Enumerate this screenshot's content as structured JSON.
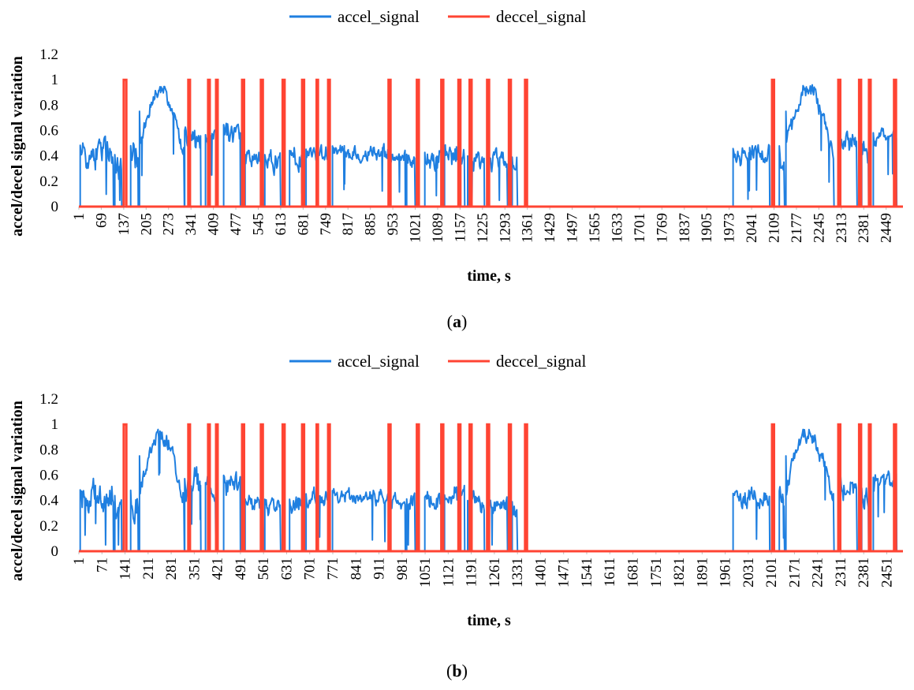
{
  "chart_data": [
    {
      "type": "line",
      "panel_label": "a",
      "xlabel": "time, s",
      "ylabel": "accel/decel signal variation",
      "ylim": [
        0,
        1.2
      ],
      "yticks": [
        0,
        0.2,
        0.4,
        0.6,
        0.8,
        1,
        1.2
      ],
      "ytick_labels": [
        "0",
        "0.2",
        "0.4",
        "0.6",
        "0.8",
        "1",
        "1.2"
      ],
      "xlim": [
        1,
        2500
      ],
      "xticks": [
        1,
        69,
        137,
        205,
        273,
        341,
        409,
        477,
        545,
        613,
        681,
        749,
        817,
        885,
        953,
        1021,
        1089,
        1157,
        1225,
        1293,
        1361,
        1429,
        1497,
        1565,
        1633,
        1701,
        1769,
        1837,
        1905,
        1973,
        2041,
        2109,
        2177,
        2245,
        2313,
        2381,
        2449
      ],
      "grid": false,
      "legend": "top-center",
      "series": [
        {
          "name": "accel_signal",
          "color": "#1f7fe0",
          "segments": [
            {
              "start": 5,
              "end": 105,
              "level": 0.42,
              "amp": 0.16,
              "trend": 0.0
            },
            {
              "start": 110,
              "end": 130,
              "level": 0.35,
              "amp": 0.15,
              "trend": 0.0
            },
            {
              "start": 158,
              "end": 180,
              "level": 0.4,
              "amp": 0.2,
              "trend": 0.0
            },
            {
              "start": 185,
              "end": 320,
              "level": 0.72,
              "amp": 0.08,
              "trend": 0.0
            },
            {
              "start": 322,
              "end": 370,
              "level": 0.52,
              "amp": 0.13,
              "trend": 0.0
            },
            {
              "start": 385,
              "end": 420,
              "level": 0.5,
              "amp": 0.1,
              "trend": 0.0
            },
            {
              "start": 440,
              "end": 490,
              "level": 0.55,
              "amp": 0.12,
              "trend": 0.0
            },
            {
              "start": 505,
              "end": 560,
              "level": 0.38,
              "amp": 0.08,
              "trend": 0.0
            },
            {
              "start": 565,
              "end": 612,
              "level": 0.37,
              "amp": 0.1,
              "trend": 0.0
            },
            {
              "start": 640,
              "end": 680,
              "level": 0.37,
              "amp": 0.1,
              "trend": 0.0
            },
            {
              "start": 690,
              "end": 760,
              "level": 0.42,
              "amp": 0.08,
              "trend": 0.0
            },
            {
              "start": 770,
              "end": 990,
              "level": 0.45,
              "amp": 0.07,
              "trend": -0.06
            },
            {
              "start": 995,
              "end": 1020,
              "level": 0.38,
              "amp": 0.08,
              "trend": 0.0
            },
            {
              "start": 1050,
              "end": 1100,
              "level": 0.38,
              "amp": 0.12,
              "trend": 0.0
            },
            {
              "start": 1110,
              "end": 1170,
              "level": 0.4,
              "amp": 0.11,
              "trend": 0.0
            },
            {
              "start": 1180,
              "end": 1230,
              "level": 0.36,
              "amp": 0.1,
              "trend": 0.0
            },
            {
              "start": 1245,
              "end": 1300,
              "level": 0.36,
              "amp": 0.1,
              "trend": 0.0
            },
            {
              "start": 1315,
              "end": 1330,
              "level": 0.35,
              "amp": 0.1,
              "trend": 0.0
            },
            {
              "start": 1985,
              "end": 2095,
              "level": 0.42,
              "amp": 0.09,
              "trend": 0.0
            },
            {
              "start": 2125,
              "end": 2140,
              "level": 0.38,
              "amp": 0.15,
              "trend": 0.0
            },
            {
              "start": 2145,
              "end": 2290,
              "level": 0.72,
              "amp": 0.08,
              "trend": 0.0
            },
            {
              "start": 2305,
              "end": 2360,
              "level": 0.52,
              "amp": 0.1,
              "trend": 0.0
            },
            {
              "start": 2375,
              "end": 2395,
              "level": 0.45,
              "amp": 0.12,
              "trend": 0.0
            },
            {
              "start": 2410,
              "end": 2480,
              "level": 0.55,
              "amp": 0.08,
              "trend": 0.0
            }
          ]
        },
        {
          "name": "deccel_signal",
          "color": "#ff4433",
          "pulses": [
            {
              "start": 137,
              "end": 145
            },
            {
              "start": 333,
              "end": 338
            },
            {
              "start": 393,
              "end": 398
            },
            {
              "start": 417,
              "end": 422
            },
            {
              "start": 496,
              "end": 502
            },
            {
              "start": 553,
              "end": 559
            },
            {
              "start": 619,
              "end": 625
            },
            {
              "start": 678,
              "end": 684
            },
            {
              "start": 722,
              "end": 726
            },
            {
              "start": 757,
              "end": 762
            },
            {
              "start": 940,
              "end": 946
            },
            {
              "start": 1026,
              "end": 1032
            },
            {
              "start": 1100,
              "end": 1106
            },
            {
              "start": 1152,
              "end": 1158
            },
            {
              "start": 1186,
              "end": 1192
            },
            {
              "start": 1239,
              "end": 1245
            },
            {
              "start": 1305,
              "end": 1311
            },
            {
              "start": 1354,
              "end": 1360
            },
            {
              "start": 2103,
              "end": 2109
            },
            {
              "start": 2304,
              "end": 2310
            },
            {
              "start": 2367,
              "end": 2373
            },
            {
              "start": 2397,
              "end": 2402
            },
            {
              "start": 2473,
              "end": 2479
            }
          ]
        }
      ]
    },
    {
      "type": "line",
      "panel_label": "b",
      "xlabel": "time, s",
      "ylabel": "accel/decel signal variation",
      "ylim": [
        0,
        1.2
      ],
      "yticks": [
        0,
        0.2,
        0.4,
        0.6,
        0.8,
        1,
        1.2
      ],
      "ytick_labels": [
        "0",
        "0.2",
        "0.4",
        "0.6",
        "0.8",
        "1",
        "1.2"
      ],
      "xlim": [
        1,
        2500
      ],
      "xticks": [
        1,
        71,
        141,
        211,
        281,
        351,
        421,
        491,
        561,
        631,
        701,
        771,
        841,
        911,
        981,
        1051,
        1121,
        1191,
        1261,
        1331,
        1401,
        1471,
        1541,
        1611,
        1681,
        1751,
        1821,
        1891,
        1961,
        2031,
        2101,
        2171,
        2241,
        2311,
        2381,
        2451
      ],
      "grid": false,
      "legend": "top-center",
      "series": [
        {
          "name": "accel_signal",
          "color": "#1f7fe0",
          "segments": [
            {
              "start": 5,
              "end": 105,
              "level": 0.42,
              "amp": 0.16,
              "trend": 0.0
            },
            {
              "start": 110,
              "end": 130,
              "level": 0.35,
              "amp": 0.15,
              "trend": 0.0
            },
            {
              "start": 158,
              "end": 180,
              "level": 0.4,
              "amp": 0.2,
              "trend": 0.0
            },
            {
              "start": 185,
              "end": 320,
              "level": 0.72,
              "amp": 0.08,
              "trend": 0.0
            },
            {
              "start": 322,
              "end": 370,
              "level": 0.52,
              "amp": 0.13,
              "trend": 0.0
            },
            {
              "start": 385,
              "end": 420,
              "level": 0.5,
              "amp": 0.1,
              "trend": 0.0
            },
            {
              "start": 440,
              "end": 490,
              "level": 0.55,
              "amp": 0.12,
              "trend": 0.0
            },
            {
              "start": 505,
              "end": 560,
              "level": 0.38,
              "amp": 0.08,
              "trend": 0.0
            },
            {
              "start": 565,
              "end": 612,
              "level": 0.37,
              "amp": 0.1,
              "trend": 0.0
            },
            {
              "start": 640,
              "end": 680,
              "level": 0.37,
              "amp": 0.1,
              "trend": 0.0
            },
            {
              "start": 690,
              "end": 760,
              "level": 0.42,
              "amp": 0.08,
              "trend": 0.0
            },
            {
              "start": 770,
              "end": 990,
              "level": 0.45,
              "amp": 0.07,
              "trend": -0.06
            },
            {
              "start": 995,
              "end": 1020,
              "level": 0.38,
              "amp": 0.08,
              "trend": 0.0
            },
            {
              "start": 1050,
              "end": 1100,
              "level": 0.38,
              "amp": 0.12,
              "trend": 0.0
            },
            {
              "start": 1110,
              "end": 1170,
              "level": 0.4,
              "amp": 0.11,
              "trend": 0.0
            },
            {
              "start": 1180,
              "end": 1230,
              "level": 0.36,
              "amp": 0.1,
              "trend": 0.0
            },
            {
              "start": 1245,
              "end": 1300,
              "level": 0.36,
              "amp": 0.1,
              "trend": 0.0
            },
            {
              "start": 1315,
              "end": 1330,
              "level": 0.35,
              "amp": 0.1,
              "trend": 0.0
            },
            {
              "start": 1985,
              "end": 2095,
              "level": 0.42,
              "amp": 0.09,
              "trend": 0.0
            },
            {
              "start": 2125,
              "end": 2140,
              "level": 0.38,
              "amp": 0.15,
              "trend": 0.0
            },
            {
              "start": 2145,
              "end": 2290,
              "level": 0.72,
              "amp": 0.08,
              "trend": 0.0
            },
            {
              "start": 2305,
              "end": 2360,
              "level": 0.52,
              "amp": 0.1,
              "trend": 0.0
            },
            {
              "start": 2375,
              "end": 2395,
              "level": 0.45,
              "amp": 0.12,
              "trend": 0.0
            },
            {
              "start": 2410,
              "end": 2480,
              "level": 0.55,
              "amp": 0.08,
              "trend": 0.0
            }
          ]
        },
        {
          "name": "deccel_signal",
          "color": "#ff4433",
          "pulses": [
            {
              "start": 137,
              "end": 145
            },
            {
              "start": 333,
              "end": 338
            },
            {
              "start": 393,
              "end": 398
            },
            {
              "start": 417,
              "end": 422
            },
            {
              "start": 496,
              "end": 502
            },
            {
              "start": 553,
              "end": 559
            },
            {
              "start": 619,
              "end": 625
            },
            {
              "start": 678,
              "end": 684
            },
            {
              "start": 722,
              "end": 726
            },
            {
              "start": 757,
              "end": 762
            },
            {
              "start": 940,
              "end": 946
            },
            {
              "start": 1026,
              "end": 1032
            },
            {
              "start": 1100,
              "end": 1106
            },
            {
              "start": 1152,
              "end": 1158
            },
            {
              "start": 1186,
              "end": 1192
            },
            {
              "start": 1239,
              "end": 1245
            },
            {
              "start": 1305,
              "end": 1311
            },
            {
              "start": 1354,
              "end": 1360
            },
            {
              "start": 2103,
              "end": 2109
            },
            {
              "start": 2304,
              "end": 2310
            },
            {
              "start": 2367,
              "end": 2373
            },
            {
              "start": 2397,
              "end": 2402
            },
            {
              "start": 2473,
              "end": 2479
            }
          ]
        }
      ]
    }
  ]
}
